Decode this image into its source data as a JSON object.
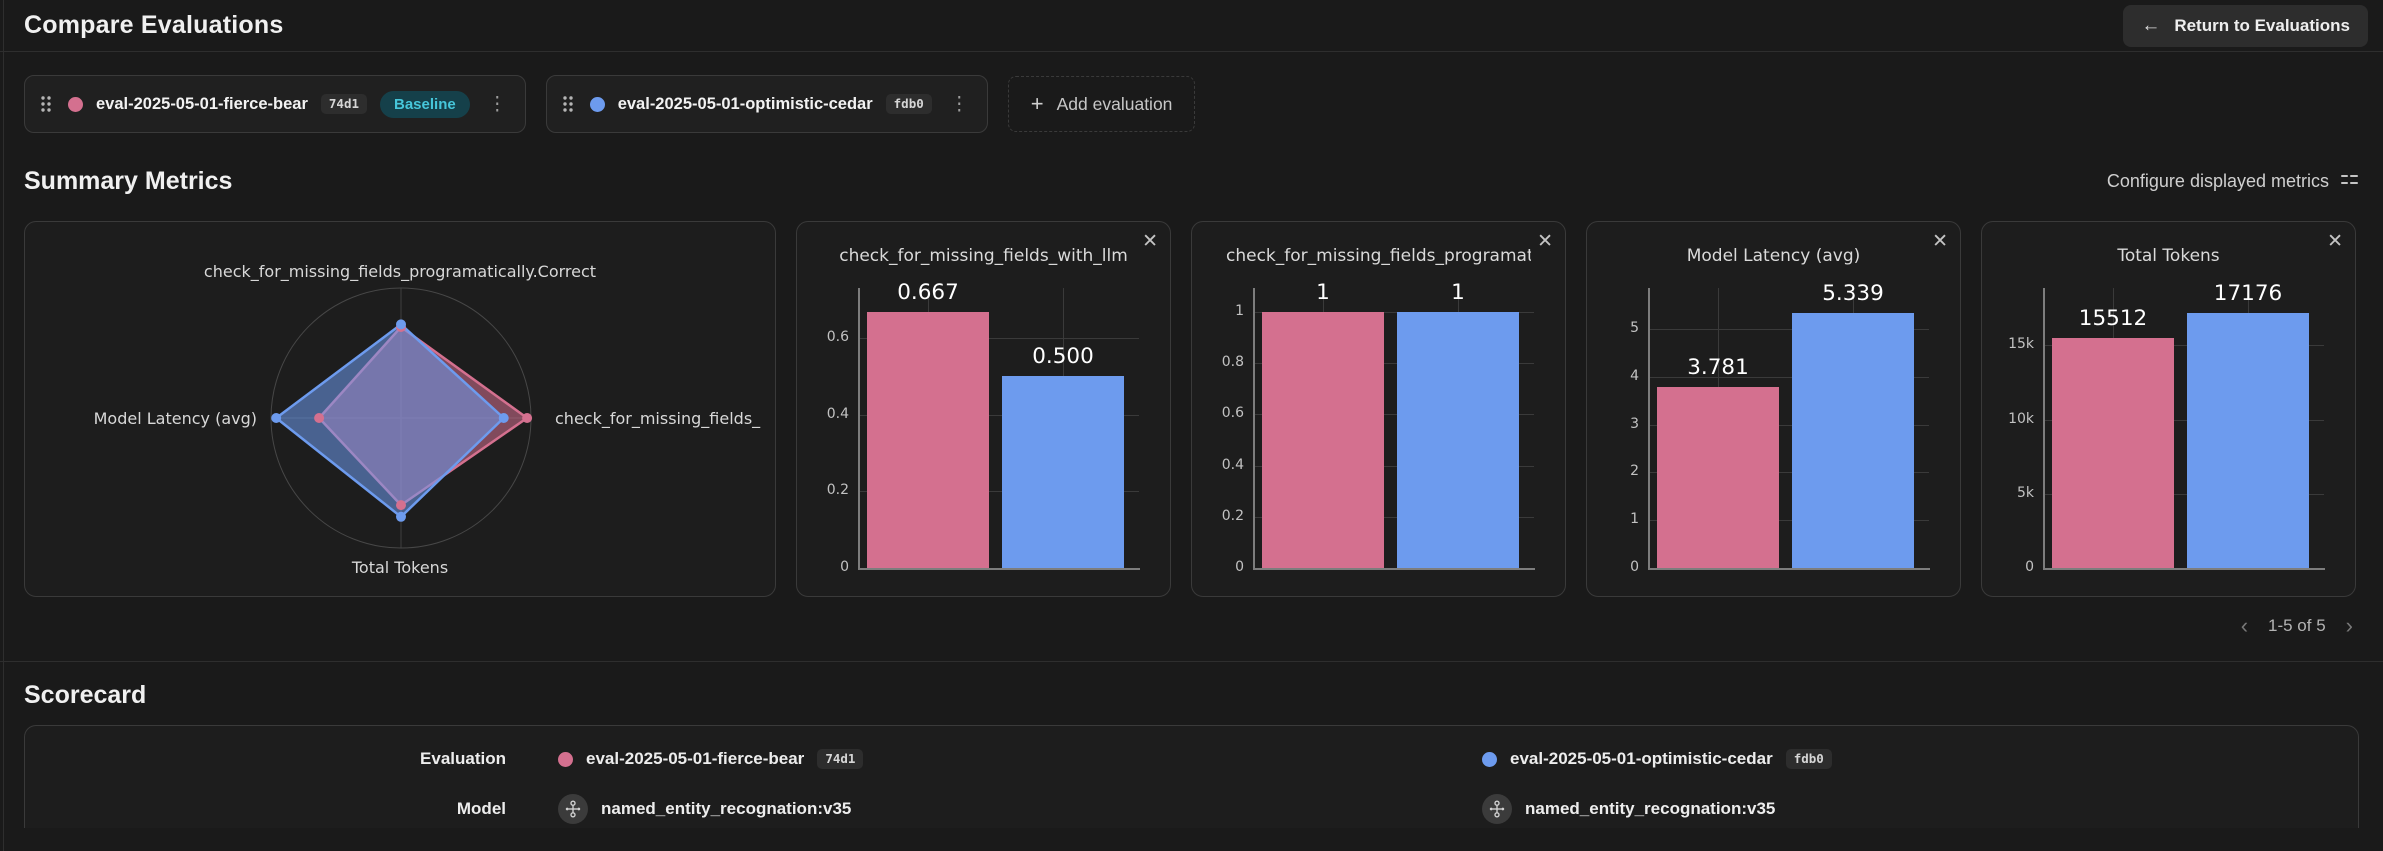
{
  "header": {
    "title": "Compare Evaluations",
    "return_label": "Return to Evaluations"
  },
  "evaluations": [
    {
      "name": "eval-2025-05-01-fierce-bear",
      "id": "74d1",
      "baseline_label": "Baseline",
      "color": "#d4708f"
    },
    {
      "name": "eval-2025-05-01-optimistic-cedar",
      "id": "fdb0",
      "color": "#6d9bee"
    }
  ],
  "add_evaluation_label": "Add evaluation",
  "summary": {
    "title": "Summary Metrics",
    "configure_label": "Configure displayed metrics",
    "pagination": "1-5 of 5"
  },
  "icons": {
    "close": "✕",
    "plus": "+",
    "back_arrow": "←",
    "chevron_left": "‹",
    "chevron_right": "›",
    "kebab": "⋮"
  },
  "colors": {
    "series_pink": "#d4708f",
    "series_blue": "#6d9bee"
  },
  "chart_data": [
    {
      "type": "radar",
      "axes": [
        "check_for_missing_fields_programatically.Correct",
        "check_for_missing_fields_",
        "Total Tokens",
        "Model Latency (avg)"
      ],
      "axis_order": [
        "top",
        "right",
        "bottom",
        "left"
      ],
      "series": [
        {
          "name": "eval-2025-05-01-fierce-bear",
          "color": "#d4708f",
          "values_fraction": [
            0.7,
            0.97,
            0.67,
            0.63
          ]
        },
        {
          "name": "eval-2025-05-01-optimistic-cedar",
          "color": "#6d9bee",
          "values_fraction": [
            0.72,
            0.79,
            0.76,
            0.96
          ]
        }
      ]
    },
    {
      "type": "bar",
      "title": "check_for_missing_fields_with_llm",
      "categories": [
        "eval-2025-05-01-fierce-bear",
        "eval-2025-05-01-optimistic-cedar"
      ],
      "values": [
        0.667,
        0.5
      ],
      "value_labels": [
        "0.667",
        "0.500"
      ],
      "colors": [
        "#d4708f",
        "#6d9bee"
      ],
      "ymax": 0.73,
      "ticks": [
        {
          "value": 0,
          "label": "0"
        },
        {
          "value": 0.2,
          "label": "0.2"
        },
        {
          "value": 0.4,
          "label": "0.4"
        },
        {
          "value": 0.6,
          "label": "0.6"
        }
      ]
    },
    {
      "type": "bar",
      "title": "check_for_missing_fields_programatically.Correct",
      "categories": [
        "eval-2025-05-01-fierce-bear",
        "eval-2025-05-01-optimistic-cedar"
      ],
      "values": [
        1,
        1
      ],
      "value_labels": [
        "1",
        "1"
      ],
      "colors": [
        "#d4708f",
        "#6d9bee"
      ],
      "ymax": 1.094,
      "ticks": [
        {
          "value": 0,
          "label": "0"
        },
        {
          "value": 0.2,
          "label": "0.2"
        },
        {
          "value": 0.4,
          "label": "0.4"
        },
        {
          "value": 0.6,
          "label": "0.6"
        },
        {
          "value": 0.8,
          "label": "0.8"
        },
        {
          "value": 1,
          "label": "1"
        }
      ]
    },
    {
      "type": "bar",
      "title": "Model Latency (avg)",
      "categories": [
        "eval-2025-05-01-fierce-bear",
        "eval-2025-05-01-optimistic-cedar"
      ],
      "values": [
        3.781,
        5.339
      ],
      "value_labels": [
        "3.781",
        "5.339"
      ],
      "colors": [
        "#d4708f",
        "#6d9bee"
      ],
      "ymax": 5.86,
      "ticks": [
        {
          "value": 0,
          "label": "0"
        },
        {
          "value": 1,
          "label": "1"
        },
        {
          "value": 2,
          "label": "2"
        },
        {
          "value": 3,
          "label": "3"
        },
        {
          "value": 4,
          "label": "4"
        },
        {
          "value": 5,
          "label": "5"
        }
      ]
    },
    {
      "type": "bar",
      "title": "Total Tokens",
      "categories": [
        "eval-2025-05-01-fierce-bear",
        "eval-2025-05-01-optimistic-cedar"
      ],
      "values": [
        15512,
        17176
      ],
      "value_labels": [
        "15512",
        "17176"
      ],
      "colors": [
        "#d4708f",
        "#6d9bee"
      ],
      "ymax": 18860,
      "ticks": [
        {
          "value": 0,
          "label": "0"
        },
        {
          "value": 5000,
          "label": "5k"
        },
        {
          "value": 10000,
          "label": "10k"
        },
        {
          "value": 15000,
          "label": "15k"
        }
      ]
    }
  ],
  "scorecard": {
    "title": "Scorecard",
    "row_labels": {
      "evaluation": "Evaluation",
      "model": "Model"
    },
    "columns": [
      {
        "evaluation_name": "eval-2025-05-01-fierce-bear",
        "evaluation_id": "74d1",
        "dot_color": "#d4708f",
        "model": "named_entity_recognation:v35"
      },
      {
        "evaluation_name": "eval-2025-05-01-optimistic-cedar",
        "evaluation_id": "fdb0",
        "dot_color": "#6d9bee",
        "model": "named_entity_recognation:v35"
      }
    ]
  }
}
